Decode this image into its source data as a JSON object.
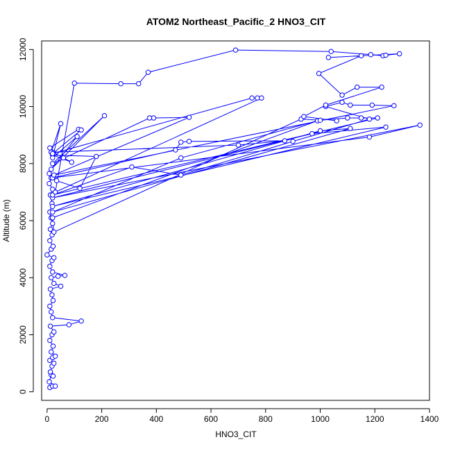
{
  "chart_data": {
    "type": "line",
    "title": "ATOM2 Northeast_Pacific_2 HNO3_CIT",
    "xlabel": "HNO3_CIT",
    "ylabel": "Altitude (m)",
    "xlim": [
      -20,
      1400
    ],
    "ylim": [
      -300,
      12300
    ],
    "x_ticks": [
      0,
      200,
      400,
      600,
      800,
      1000,
      1200,
      1400
    ],
    "y_ticks": [
      0,
      2000,
      4000,
      6000,
      8000,
      10000,
      12000
    ],
    "marker": "open-circle",
    "grid": false,
    "series_color": "#0000ff",
    "series": [
      {
        "values": [
          [
            10,
            150
          ],
          [
            20,
            200
          ],
          [
            30,
            200
          ],
          [
            8,
            350
          ],
          [
            15,
            600
          ],
          [
            22,
            550
          ],
          [
            12,
            700
          ],
          [
            18,
            900
          ],
          [
            25,
            1000
          ],
          [
            10,
            1100
          ],
          [
            20,
            1200
          ],
          [
            30,
            1250
          ],
          [
            15,
            1400
          ],
          [
            22,
            1600
          ],
          [
            10,
            1800
          ],
          [
            18,
            2000
          ],
          [
            25,
            2100
          ],
          [
            12,
            2300
          ],
          [
            80,
            2350
          ],
          [
            125,
            2480
          ],
          [
            20,
            2600
          ],
          [
            15,
            2800
          ],
          [
            10,
            3000
          ],
          [
            22,
            3200
          ],
          [
            18,
            3400
          ],
          [
            12,
            3600
          ],
          [
            50,
            3700
          ],
          [
            25,
            3800
          ],
          [
            15,
            4000
          ],
          [
            40,
            4050
          ],
          [
            65,
            4080
          ],
          [
            20,
            4200
          ],
          [
            10,
            4400
          ],
          [
            18,
            4600
          ],
          [
            25,
            4700
          ],
          [
            0,
            4800
          ],
          [
            15,
            5000
          ],
          [
            22,
            5100
          ],
          [
            10,
            5300
          ],
          [
            18,
            5500
          ],
          [
            12,
            5700
          ],
          [
            20,
            5900
          ],
          [
            15,
            6100
          ],
          [
            10,
            6300
          ],
          [
            18,
            6600
          ],
          [
            12,
            6900
          ],
          [
            20,
            7100
          ],
          [
            8,
            7300
          ],
          [
            15,
            7500
          ],
          [
            8,
            7650
          ],
          [
            35,
            7400
          ],
          [
            120,
            7130
          ],
          [
            180,
            8250
          ],
          [
            20,
            8300
          ],
          [
            90,
            8050
          ],
          [
            60,
            8200
          ],
          [
            20,
            8400
          ],
          [
            700,
            8650
          ],
          [
            870,
            8800
          ],
          [
            520,
            8780
          ],
          [
            490,
            8750
          ],
          [
            470,
            8480
          ],
          [
            20,
            7500
          ],
          [
            1180,
            8930
          ],
          [
            1365,
            9350
          ],
          [
            20,
            6800
          ],
          [
            970,
            9050
          ],
          [
            1240,
            9280
          ],
          [
            20,
            6500
          ],
          [
            1000,
            9150
          ],
          [
            1110,
            9230
          ],
          [
            20,
            6300
          ],
          [
            490,
            8200
          ],
          [
            990,
            9500
          ],
          [
            20,
            6100
          ],
          [
            25,
            5600
          ],
          [
            930,
            9560
          ],
          [
            1000,
            9520
          ],
          [
            1100,
            9600
          ],
          [
            1150,
            9600
          ],
          [
            1210,
            9600
          ],
          [
            20,
            6900
          ],
          [
            310,
            7880
          ],
          [
            490,
            7600
          ],
          [
            900,
            8780
          ],
          [
            1180,
            9560
          ],
          [
            1020,
            10000
          ],
          [
            1080,
            10150
          ],
          [
            1110,
            10050
          ],
          [
            1190,
            10050
          ],
          [
            1270,
            10030
          ],
          [
            25,
            7600
          ],
          [
            520,
            9620
          ],
          [
            390,
            9600
          ],
          [
            375,
            9600
          ],
          [
            20,
            8000
          ],
          [
            210,
            9680
          ],
          [
            15,
            7800
          ],
          [
            110,
            8950
          ],
          [
            20,
            8200
          ],
          [
            50,
            9400
          ],
          [
            15,
            8400
          ],
          [
            10,
            8550
          ],
          [
            115,
            9200
          ],
          [
            125,
            9180
          ],
          [
            20,
            8350
          ],
          [
            750,
            10300
          ],
          [
            770,
            10300
          ],
          [
            785,
            10300
          ],
          [
            30,
            7000
          ],
          [
            100,
            10820
          ],
          [
            270,
            10800
          ],
          [
            335,
            10800
          ],
          [
            370,
            11200
          ],
          [
            690,
            11980
          ],
          [
            1040,
            11930
          ],
          [
            1185,
            11820
          ],
          [
            1230,
            11780
          ],
          [
            1240,
            11800
          ],
          [
            1290,
            11850
          ],
          [
            1030,
            11720
          ],
          [
            1150,
            11780
          ],
          [
            995,
            11160
          ],
          [
            1080,
            10400
          ],
          [
            1135,
            10680
          ],
          [
            1225,
            10680
          ],
          [
            1020,
            10050
          ],
          [
            940,
            9650
          ],
          [
            1060,
            9500
          ]
        ]
      }
    ]
  }
}
